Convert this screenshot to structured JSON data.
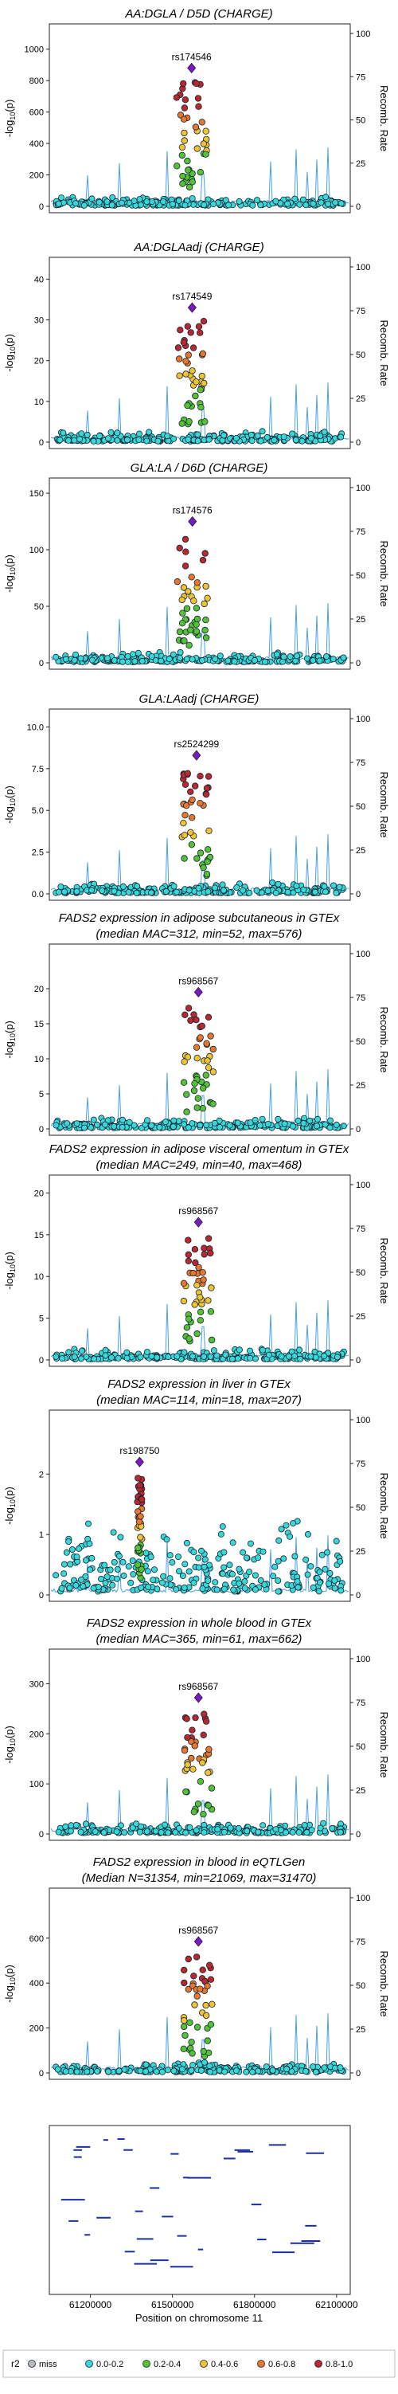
{
  "chart_data": {
    "type": "scatter",
    "x_axis": {
      "label": "Position on chromosome 11",
      "ticks": [
        61200000,
        61500000,
        61800000,
        62100000
      ],
      "tick_labels": [
        "61200000",
        "61500000",
        "61800000",
        "62100000"
      ],
      "range": [
        61050000,
        62150000
      ]
    },
    "right_axis": {
      "label": "Recomb. Rate",
      "ticks": [
        0,
        25,
        50,
        75,
        100
      ],
      "tick_labels": [
        "0",
        "25",
        "50",
        "75",
        "100"
      ]
    },
    "y_label": "-log10(p)",
    "y_label_prefix": "-log",
    "y_label_sub": "10",
    "y_label_suffix": "(p)",
    "panels": [
      {
        "title_lines": [
          "AA:DGLA / D5D (CHARGE)"
        ],
        "lead_snp": "rs174546",
        "lead_x": 61570000,
        "lead_y": 880,
        "ylim": [
          0,
          1100
        ],
        "y_ticks": [
          0,
          200,
          400,
          600,
          800,
          1000
        ],
        "y_tick_labels": [
          "0",
          "200",
          "400",
          "600",
          "800",
          "1000"
        ]
      },
      {
        "title_lines": [
          "AA:DGLAadj (CHARGE)"
        ],
        "lead_snp": "rs174549",
        "lead_x": 61572000,
        "lead_y": 33,
        "ylim": [
          0,
          43
        ],
        "y_ticks": [
          0,
          10,
          20,
          30,
          40
        ],
        "y_tick_labels": [
          "0",
          "10",
          "20",
          "30",
          "40"
        ]
      },
      {
        "title_lines": [
          "GLA:LA / D6D (CHARGE)"
        ],
        "lead_snp": "rs174576",
        "lead_x": 61573000,
        "lead_y": 125,
        "ylim": [
          0,
          155
        ],
        "y_ticks": [
          0,
          50,
          100,
          150
        ],
        "y_tick_labels": [
          "0",
          "50",
          "100",
          "150"
        ]
      },
      {
        "title_lines": [
          "GLA:LAadj (CHARGE)"
        ],
        "lead_snp": "rs2524299",
        "lead_x": 61588000,
        "lead_y": 8.3,
        "ylim": [
          0,
          10.5
        ],
        "y_ticks": [
          0,
          2.5,
          5,
          7.5,
          10
        ],
        "y_tick_labels": [
          "0.0",
          "2.5",
          "5.0",
          "7.5",
          "10.0"
        ]
      },
      {
        "title_lines": [
          "FADS2 expression in adipose subcutaneous in GTEx",
          "(median MAC=312, min=52, max=576)"
        ],
        "lead_snp": "rs968567",
        "lead_x": 61595000,
        "lead_y": 19.5,
        "ylim": [
          0,
          25
        ],
        "y_ticks": [
          0,
          5,
          10,
          15,
          20
        ],
        "y_tick_labels": [
          "0",
          "5",
          "10",
          "15",
          "20"
        ]
      },
      {
        "title_lines": [
          "FADS2 expression in adipose visceral omentum in GTEx",
          "(median MAC=249, min=40, max=468)"
        ],
        "lead_snp": "rs968567",
        "lead_x": 61595000,
        "lead_y": 16.5,
        "ylim": [
          0,
          21
        ],
        "y_ticks": [
          0,
          5,
          10,
          15,
          20
        ],
        "y_tick_labels": [
          "0",
          "5",
          "10",
          "15",
          "20"
        ]
      },
      {
        "title_lines": [
          "FADS2 expression in liver in GTEx",
          "(median MAC=114, min=18, max=207)"
        ],
        "lead_snp": "rs198750",
        "lead_x": 61380000,
        "lead_y": 2.2,
        "ylim": [
          0,
          2.9
        ],
        "y_ticks": [
          0,
          1,
          2
        ],
        "y_tick_labels": [
          "0",
          "1",
          "2"
        ]
      },
      {
        "title_lines": [
          "FADS2 expression in whole blood in GTEx",
          "(median MAC=365, min=61, max=662)"
        ],
        "lead_snp": "rs968567",
        "lead_x": 61595000,
        "lead_y": 272,
        "ylim": [
          0,
          350
        ],
        "y_ticks": [
          0,
          100,
          200,
          300
        ],
        "y_tick_labels": [
          "0",
          "100",
          "200",
          "300"
        ]
      },
      {
        "title_lines": [
          "FADS2 expression in blood in eQTLGen",
          "(Median N=31354, min=21069, max=31470)"
        ],
        "lead_snp": "rs968567",
        "lead_x": 61595000,
        "lead_y": 585,
        "ylim": [
          0,
          780
        ],
        "y_ticks": [
          0,
          200,
          400,
          600
        ],
        "y_tick_labels": [
          "0",
          "200",
          "400",
          "600"
        ]
      }
    ],
    "legend": {
      "title": "r2",
      "entries": [
        {
          "label": "miss",
          "color": "#bbbbbb"
        },
        {
          "label": "0.0-0.2",
          "color": "#38d8d8"
        },
        {
          "label": "0.2-0.4",
          "color": "#55c234"
        },
        {
          "label": "0.4-0.6",
          "color": "#f1c232"
        },
        {
          "label": "0.6-0.8",
          "color": "#e8762b"
        },
        {
          "label": "0.8-1.0",
          "color": "#b8292f"
        }
      ],
      "placement": "bottom"
    },
    "lead_color": "#7a18c8",
    "recomb_color": "#4a9fe6",
    "grid": false
  }
}
